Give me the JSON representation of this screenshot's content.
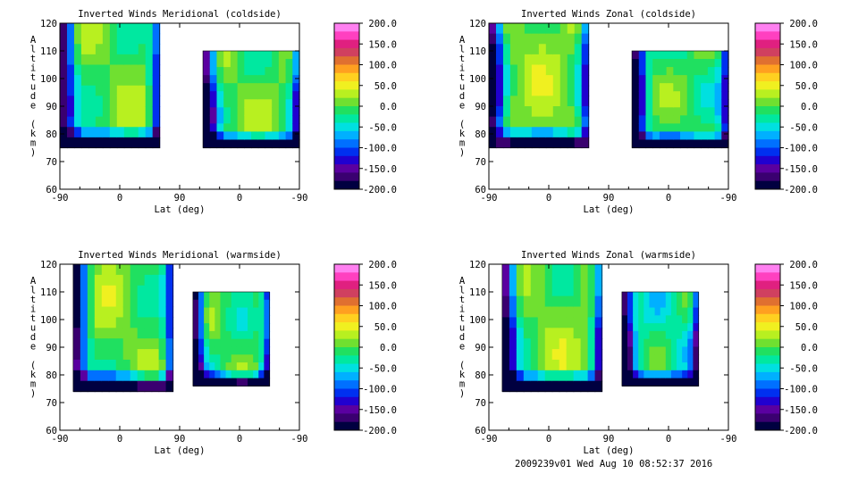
{
  "footer": "2009239v01 Wed Aug 10 08:52:37 2016",
  "colors": {
    "scale": [
      "#000040",
      "#3a0070",
      "#5a00a0",
      "#2000d0",
      "#0030f0",
      "#0070ff",
      "#00b0ff",
      "#00e0e0",
      "#00e8a0",
      "#20e060",
      "#70e030",
      "#b8f020",
      "#f0f020",
      "#ffd020",
      "#ffa020",
      "#e07030",
      "#d04060",
      "#e02080",
      "#ff40c0",
      "#ff80f0"
    ]
  },
  "chart_data": [
    {
      "type": "heatmap",
      "title": "Inverted Winds Meridional (coldside)",
      "xlabel": "Lat (deg)",
      "ylabel": "Altitude (km)",
      "xticks": [
        "-90",
        "0",
        "90",
        "0",
        "-90"
      ],
      "yticks": [
        "60",
        "70",
        "80",
        "90",
        "100",
        "110",
        "120"
      ],
      "ylim": [
        60,
        120
      ],
      "colorbar": {
        "range": [
          -200,
          200
        ],
        "labels": [
          "200.0",
          "150.0",
          "100.0",
          "50.0",
          "0.0",
          "-50.0",
          "-100.0",
          "-150.0",
          "-200.0"
        ]
      },
      "regions": [
        {
          "x": [
            -90,
            60
          ],
          "y": [
            75,
            120
          ],
          "base": 0,
          "notes": "left block, mostly 0 to 50 m/s"
        },
        {
          "x": [
            125,
            -90
          ],
          "y": [
            75,
            110
          ],
          "base": 0,
          "notes": "right block, warm spot near 90 km"
        }
      ]
    },
    {
      "type": "heatmap",
      "title": "Inverted Winds Zonal (coldside)",
      "xlabel": "Lat (deg)",
      "ylabel": "Altitude (km)",
      "xticks": [
        "-90",
        "0",
        "90",
        "0",
        "-90"
      ],
      "yticks": [
        "60",
        "70",
        "80",
        "90",
        "100",
        "110",
        "120"
      ],
      "ylim": [
        60,
        120
      ],
      "colorbar": {
        "range": [
          -200,
          200
        ],
        "labels": [
          "200.0",
          "150.0",
          "100.0",
          "50.0",
          "0.0",
          "-50.0",
          "-100.0",
          "-150.0",
          "-200.0"
        ]
      },
      "regions": [
        {
          "x": [
            -90,
            60
          ],
          "y": [
            75,
            120
          ],
          "base": 10,
          "notes": "left block, peak near top right"
        },
        {
          "x": [
            125,
            -90
          ],
          "y": [
            75,
            110
          ],
          "base": -10,
          "notes": "right block, cyan band mid-latitudes"
        }
      ]
    },
    {
      "type": "heatmap",
      "title": "Inverted Winds Meridional (warmside)",
      "xlabel": "Lat (deg)",
      "ylabel": "Altitude (km)",
      "xticks": [
        "-90",
        "0",
        "90",
        "0",
        "-90"
      ],
      "yticks": [
        "60",
        "70",
        "80",
        "90",
        "100",
        "110",
        "120"
      ],
      "ylim": [
        60,
        120
      ],
      "colorbar": {
        "range": [
          -200,
          200
        ],
        "labels": [
          "200.0",
          "150.0",
          "100.0",
          "50.0",
          "0.0",
          "-50.0",
          "-100.0",
          "-150.0",
          "-200.0"
        ]
      },
      "regions": [
        {
          "x": [
            -70,
            80
          ],
          "y": [
            74,
            120
          ],
          "base": 5,
          "notes": "left block, yellow/green"
        },
        {
          "x": [
            110,
            -45
          ],
          "y": [
            76,
            110
          ],
          "base": -10,
          "notes": "right block, green/cyan"
        }
      ]
    },
    {
      "type": "heatmap",
      "title": "Inverted Winds Zonal (warmside)",
      "xlabel": "Lat (deg)",
      "ylabel": "Altitude (km)",
      "xticks": [
        "-90",
        "0",
        "90",
        "0",
        "-90"
      ],
      "yticks": [
        "60",
        "70",
        "80",
        "90",
        "100",
        "110",
        "120"
      ],
      "ylim": [
        60,
        120
      ],
      "colorbar": {
        "range": [
          -200,
          200
        ],
        "labels": [
          "200.0",
          "150.0",
          "100.0",
          "50.0",
          "0.0",
          "-50.0",
          "-100.0",
          "-150.0",
          "-200.0"
        ]
      },
      "regions": [
        {
          "x": [
            -70,
            80
          ],
          "y": [
            74,
            120
          ],
          "base": 5,
          "notes": "left block, negative near top"
        },
        {
          "x": [
            110,
            -45
          ],
          "y": [
            76,
            110
          ],
          "base": -30,
          "notes": "right block, cyan dominated"
        }
      ]
    }
  ]
}
